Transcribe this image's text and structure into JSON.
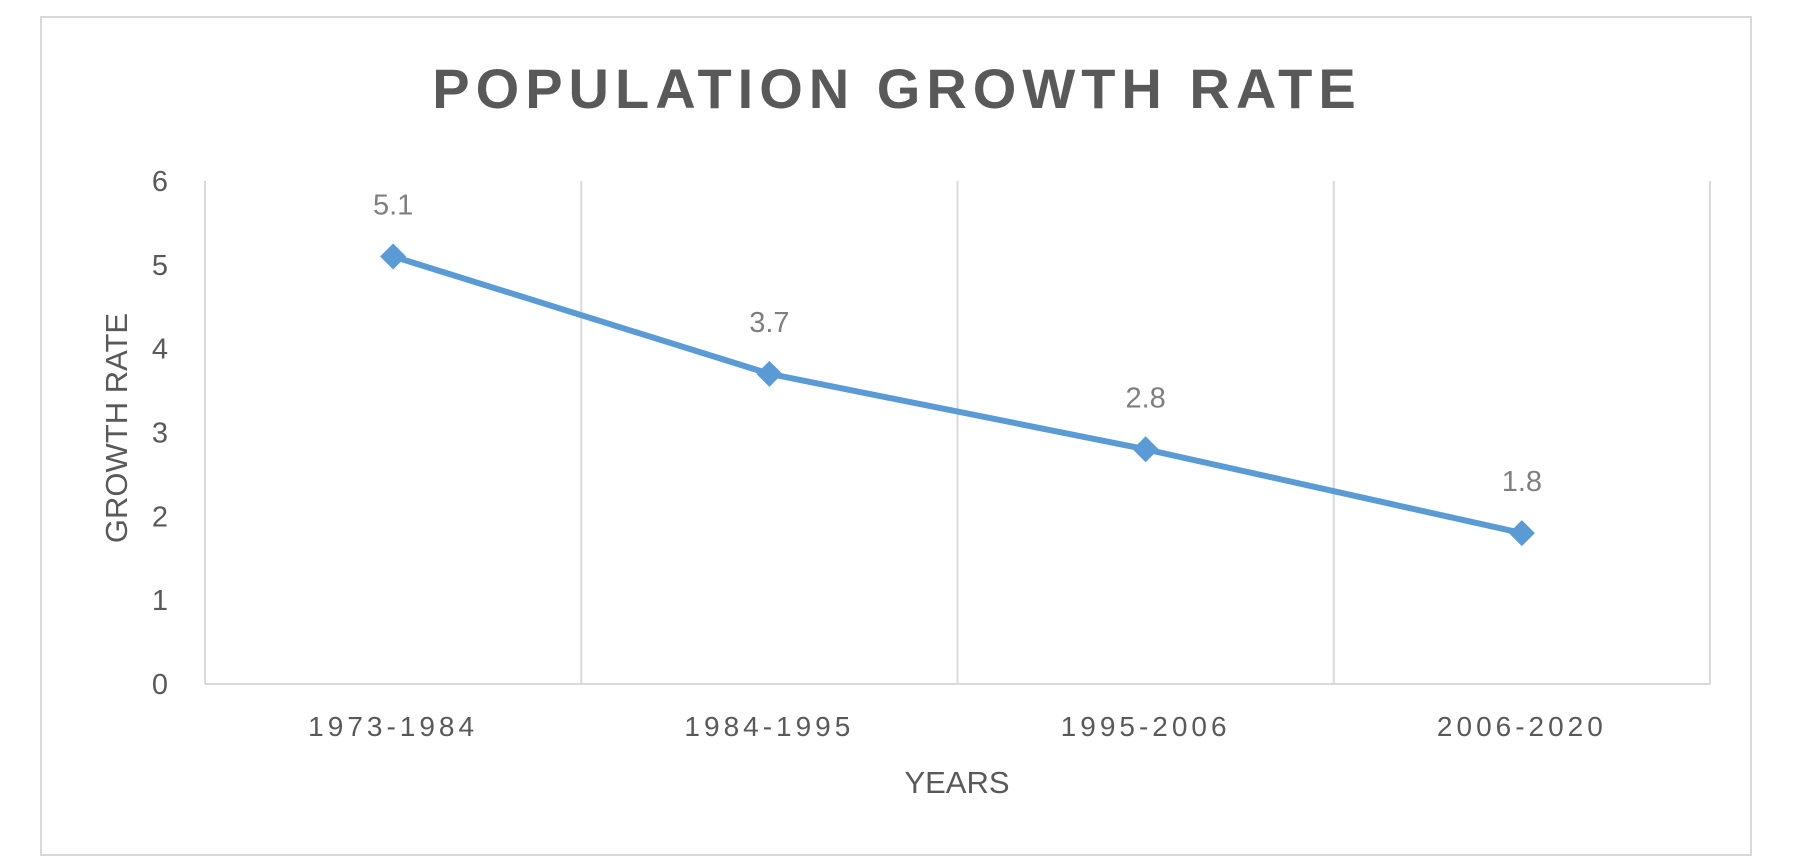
{
  "chart_data": {
    "type": "line",
    "title": "POPULATION GROWTH RATE",
    "xlabel": "YEARS",
    "ylabel": "GROWTH RATE",
    "categories": [
      "1973-1984",
      "1984-1995",
      "1995-2006",
      "2006-2020"
    ],
    "series": [
      {
        "values": [
          5.1,
          3.7,
          2.8,
          1.8
        ],
        "data_labels": [
          "5.1",
          "3.7",
          "2.8",
          "1.8"
        ],
        "color": "#5b9bd5",
        "marker": "diamond"
      }
    ],
    "y_ticks": [
      "0",
      "1",
      "2",
      "3",
      "4",
      "5",
      "6"
    ],
    "ylim": [
      0,
      6
    ],
    "grid": "vertical",
    "legend": "none",
    "colors": {
      "gridline": "#d9d9d9",
      "text": "#595959",
      "label": "#7f7f7f"
    }
  }
}
